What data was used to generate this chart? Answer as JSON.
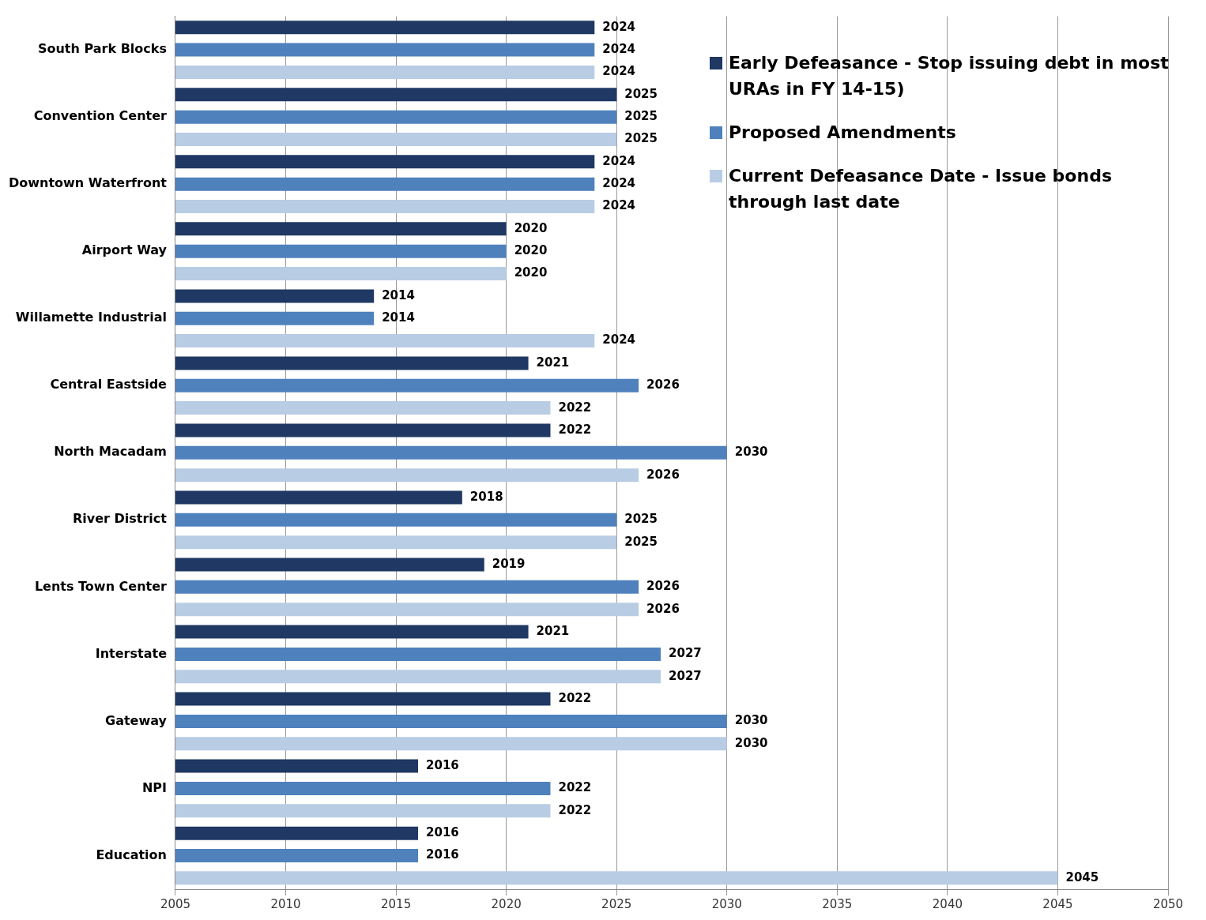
{
  "chart_data": {
    "type": "bar",
    "orientation": "horizontal",
    "categories": [
      "South Park Blocks",
      "Convention Center",
      "Downtown Waterfront",
      "Airport Way",
      "Willamette Industrial",
      "Central Eastside",
      "North Macadam",
      "River District",
      "Lents Town Center",
      "Interstate",
      "Gateway",
      "NPI",
      "Education"
    ],
    "series": [
      {
        "name": "Early Defeasance - Stop issuing debt in most URAs in FY 14-15)",
        "color": "#1f3864",
        "values": [
          2024,
          2025,
          2024,
          2020,
          2014,
          2021,
          2022,
          2018,
          2019,
          2021,
          2022,
          2016,
          2016
        ]
      },
      {
        "name": "Proposed Amendments",
        "color": "#4f81bd",
        "values": [
          2024,
          2025,
          2024,
          2020,
          2014,
          2026,
          2030,
          2025,
          2026,
          2027,
          2030,
          2022,
          2016
        ]
      },
      {
        "name": "Current Defeasance Date - Issue bonds through last date",
        "color": "#b8cce4",
        "values": [
          2024,
          2025,
          2024,
          2020,
          2024,
          2022,
          2026,
          2025,
          2026,
          2027,
          2030,
          2022,
          2045
        ]
      }
    ],
    "xlim": [
      2005,
      2050
    ],
    "xticks": [
      2005,
      2010,
      2015,
      2020,
      2025,
      2030,
      2035,
      2040,
      2045,
      2050
    ],
    "grid": "x",
    "legend": "top right",
    "data_labels": true
  }
}
